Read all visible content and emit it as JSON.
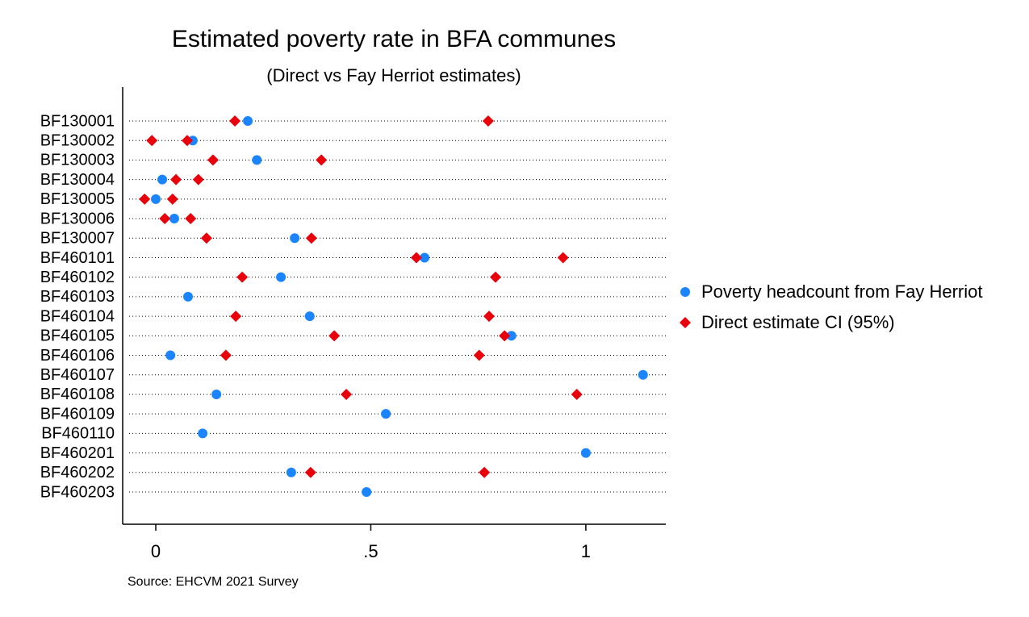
{
  "chart_data": {
    "type": "dot",
    "title": "Estimated poverty rate in BFA communes",
    "subtitle": "(Direct vs Fay Herriot estimates)",
    "note": "Source: EHCVM 2021 Survey",
    "categories": [
      "BF130001",
      "BF130002",
      "BF130003",
      "BF130004",
      "BF130005",
      "BF130006",
      "BF130007",
      "BF460101",
      "BF460102",
      "BF460103",
      "BF460104",
      "BF460105",
      "BF460106",
      "BF460107",
      "BF460108",
      "BF460109",
      "BF460110",
      "BF460201",
      "BF460202",
      "BF460203"
    ],
    "series": [
      {
        "name": "Poverty headcount from Fay Herriot",
        "color": "#1a85ff",
        "marker": "circle",
        "values": [
          0.214,
          0.086,
          0.235,
          0.015,
          0.0,
          0.043,
          0.323,
          0.625,
          0.291,
          0.075,
          0.358,
          0.827,
          0.034,
          1.133,
          0.141,
          0.535,
          0.109,
          1.0,
          0.315,
          0.49
        ]
      },
      {
        "name": "Direct estimate CI (95%)",
        "color": "#e8000b",
        "marker": "diamond",
        "lower": [
          0.184,
          -0.009,
          0.133,
          0.047,
          -0.026,
          0.021,
          0.118,
          0.606,
          0.201,
          null,
          0.186,
          0.415,
          0.163,
          null,
          0.443,
          null,
          null,
          null,
          0.36,
          null
        ],
        "upper": [
          0.773,
          0.073,
          0.385,
          0.099,
          0.039,
          0.081,
          0.362,
          0.947,
          0.79,
          null,
          0.775,
          0.811,
          0.752,
          null,
          0.979,
          null,
          null,
          null,
          0.764,
          null
        ]
      }
    ],
    "xlim": [
      -0.077,
      1.186
    ],
    "xticks": [
      0,
      {
        "value": 0.5,
        "label": ".5"
      },
      1
    ],
    "grid": true,
    "legend": "right"
  }
}
